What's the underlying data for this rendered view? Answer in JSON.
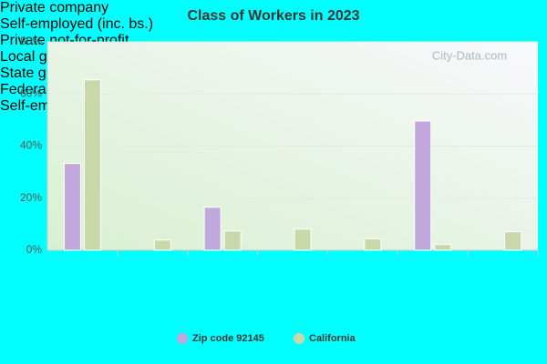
{
  "chart_data": {
    "type": "bar",
    "title": "Class of Workers in 2023",
    "watermark": "City-Data.com",
    "categories": [
      "Private company",
      "Self-employed (inc. bs.)",
      "Private not-for-profit",
      "Local government workers",
      "State government workers",
      "Federal government workers",
      "Self-employed (not inc. bs.)"
    ],
    "series": [
      {
        "name": "Zip code 92145",
        "color": "#c0a8dc",
        "values": [
          33.3,
          0,
          16.5,
          0,
          0,
          49.6,
          0
        ]
      },
      {
        "name": "California",
        "color": "#c8d8a8",
        "values": [
          65.4,
          3.9,
          7.4,
          8.1,
          4.4,
          2.2,
          7.1
        ]
      }
    ],
    "ylim": [
      0,
      80
    ],
    "yticks": [
      {
        "value": 0,
        "label": "0%"
      },
      {
        "value": 20,
        "label": "20%"
      },
      {
        "value": 40,
        "label": "40%"
      },
      {
        "value": 60,
        "label": "60%"
      },
      {
        "value": 80,
        "label": "80%"
      }
    ],
    "grid": true,
    "legend": "bottom"
  }
}
